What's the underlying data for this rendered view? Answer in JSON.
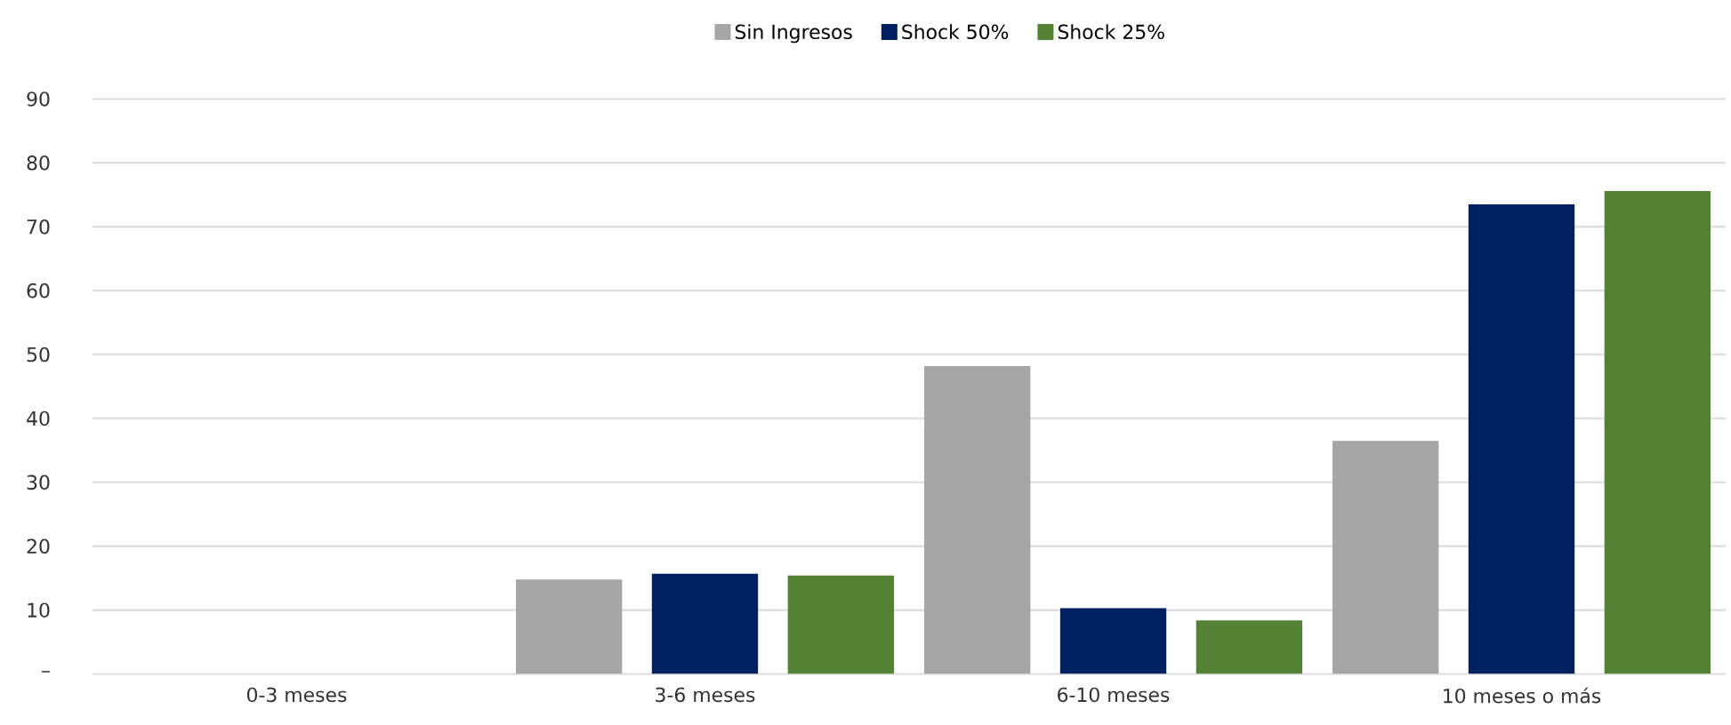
{
  "chart_data": {
    "type": "bar",
    "categories": [
      "0-3 meses",
      "3-6 meses",
      "6-10 meses",
      "10 meses o más"
    ],
    "series": [
      {
        "name": "Sin Ingresos",
        "color": "#a6a6a6",
        "values": [
          0,
          14.8,
          48.2,
          36.5
        ]
      },
      {
        "name": "Shock 50%",
        "color": "#002060",
        "values": [
          0,
          15.7,
          10.3,
          73.5
        ]
      },
      {
        "name": "Shock 25%",
        "color": "#548235",
        "values": [
          0,
          15.4,
          8.4,
          75.6
        ]
      }
    ],
    "ylim": [
      0,
      90
    ],
    "yticks": [
      {
        "value": 0,
        "label": "–"
      },
      10,
      20,
      30,
      40,
      50,
      60,
      70,
      80,
      90
    ],
    "grid": "y",
    "legend": "top"
  }
}
